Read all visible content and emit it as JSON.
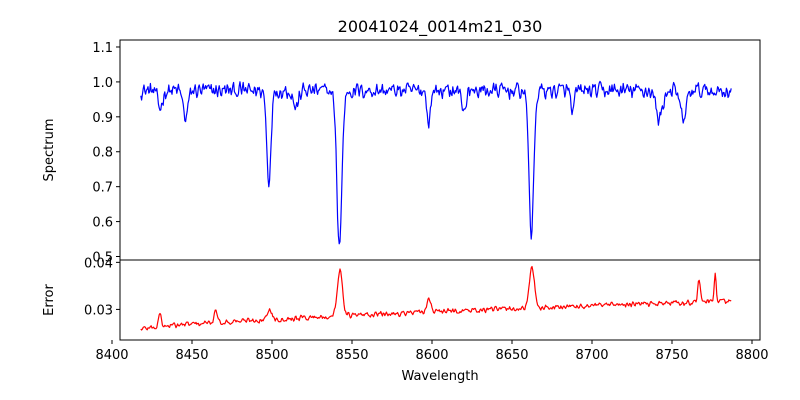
{
  "chart_data": {
    "type": "line",
    "title": "20041024_0014m21_030",
    "xlabel": "Wavelength",
    "xlim": [
      8405,
      8805
    ],
    "xticks": [
      8400,
      8450,
      8500,
      8550,
      8600,
      8650,
      8700,
      8750,
      8800
    ],
    "grid": false,
    "panels": [
      {
        "name": "spectrum",
        "ylabel": "Spectrum",
        "ylim": [
          0.49,
          1.12
        ],
        "yticks": [
          0.5,
          0.6,
          0.7,
          0.8,
          0.9,
          1.0,
          1.1
        ],
        "color": "#0000ff",
        "x_range": [
          8418,
          8787
        ],
        "continuum": 0.975,
        "noise": 0.028,
        "features": [
          {
            "center": 8498.0,
            "depth": 0.26,
            "width": 1.3
          },
          {
            "center": 8542.1,
            "depth": 0.44,
            "width": 1.6
          },
          {
            "center": 8662.1,
            "depth": 0.41,
            "width": 1.5
          },
          {
            "center": 8446.0,
            "depth": 0.08,
            "width": 1.5
          },
          {
            "center": 8430.0,
            "depth": 0.05,
            "width": 1.5
          },
          {
            "center": 8515.0,
            "depth": 0.05,
            "width": 1.5
          },
          {
            "center": 8598.0,
            "depth": 0.1,
            "width": 1.0
          },
          {
            "center": 8620.0,
            "depth": 0.05,
            "width": 1.5
          },
          {
            "center": 8688.0,
            "depth": 0.07,
            "width": 1.0
          },
          {
            "center": 8742.0,
            "depth": 0.08,
            "width": 2.0
          },
          {
            "center": 8757.0,
            "depth": 0.08,
            "width": 2.0
          }
        ]
      },
      {
        "name": "error",
        "ylabel": "Error",
        "ylim": [
          0.0235,
          0.0405
        ],
        "yticks": [
          0.03,
          0.04
        ],
        "color": "#ff0000",
        "x_range": [
          8418,
          8787
        ],
        "baseline_start": 0.0258,
        "baseline_end": 0.0318,
        "noise": 0.0007,
        "features": [
          {
            "center": 8542.5,
            "height": 0.01,
            "width": 1.6
          },
          {
            "center": 8662.5,
            "height": 0.0085,
            "width": 1.6
          },
          {
            "center": 8498.5,
            "height": 0.002,
            "width": 1.5
          },
          {
            "center": 8598.0,
            "height": 0.003,
            "width": 1.2
          },
          {
            "center": 8430.0,
            "height": 0.003,
            "width": 0.8
          },
          {
            "center": 8465.0,
            "height": 0.003,
            "width": 0.8
          },
          {
            "center": 8767.0,
            "height": 0.005,
            "width": 0.8
          },
          {
            "center": 8777.0,
            "height": 0.006,
            "width": 0.6
          }
        ]
      }
    ]
  }
}
